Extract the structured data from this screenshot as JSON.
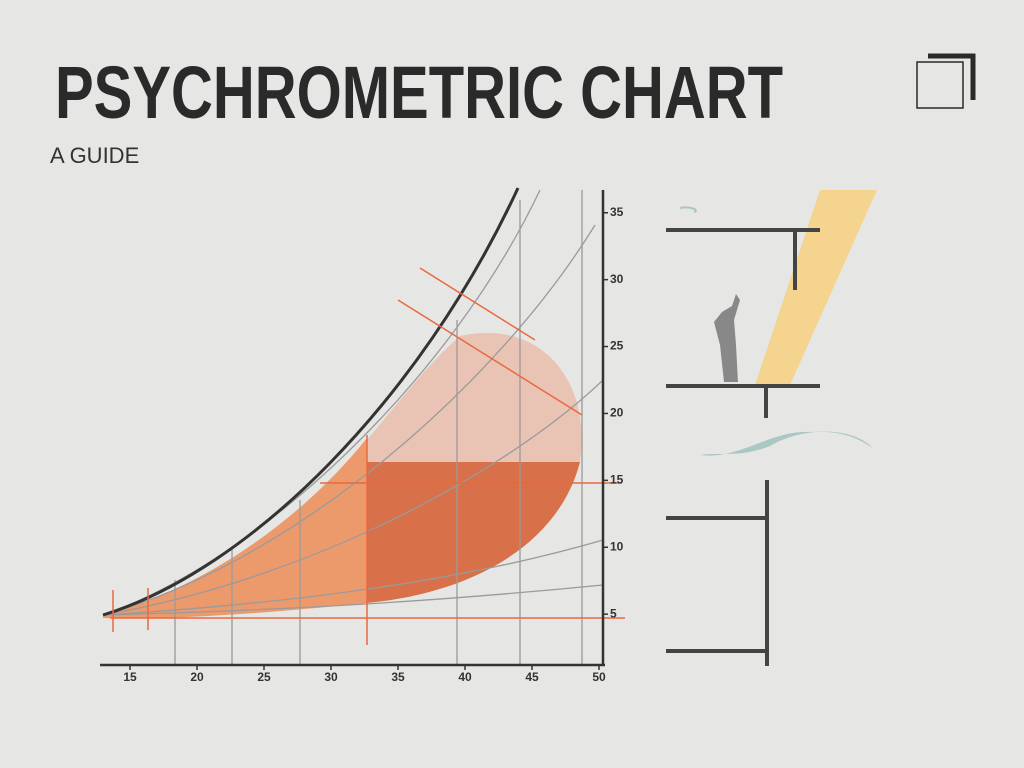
{
  "chart_data": {
    "type": "psychrometric",
    "title": "PSYCHROMETRIC CHART",
    "subtitle": "A GUIDE",
    "xlim": [
      13,
      50
    ],
    "xticks": [
      15,
      20,
      25,
      30,
      35,
      40,
      45,
      50
    ],
    "ylim": [
      1.2,
      36.7
    ],
    "yticks": [
      5,
      10,
      15,
      20,
      25,
      30,
      35
    ]
  }
}
